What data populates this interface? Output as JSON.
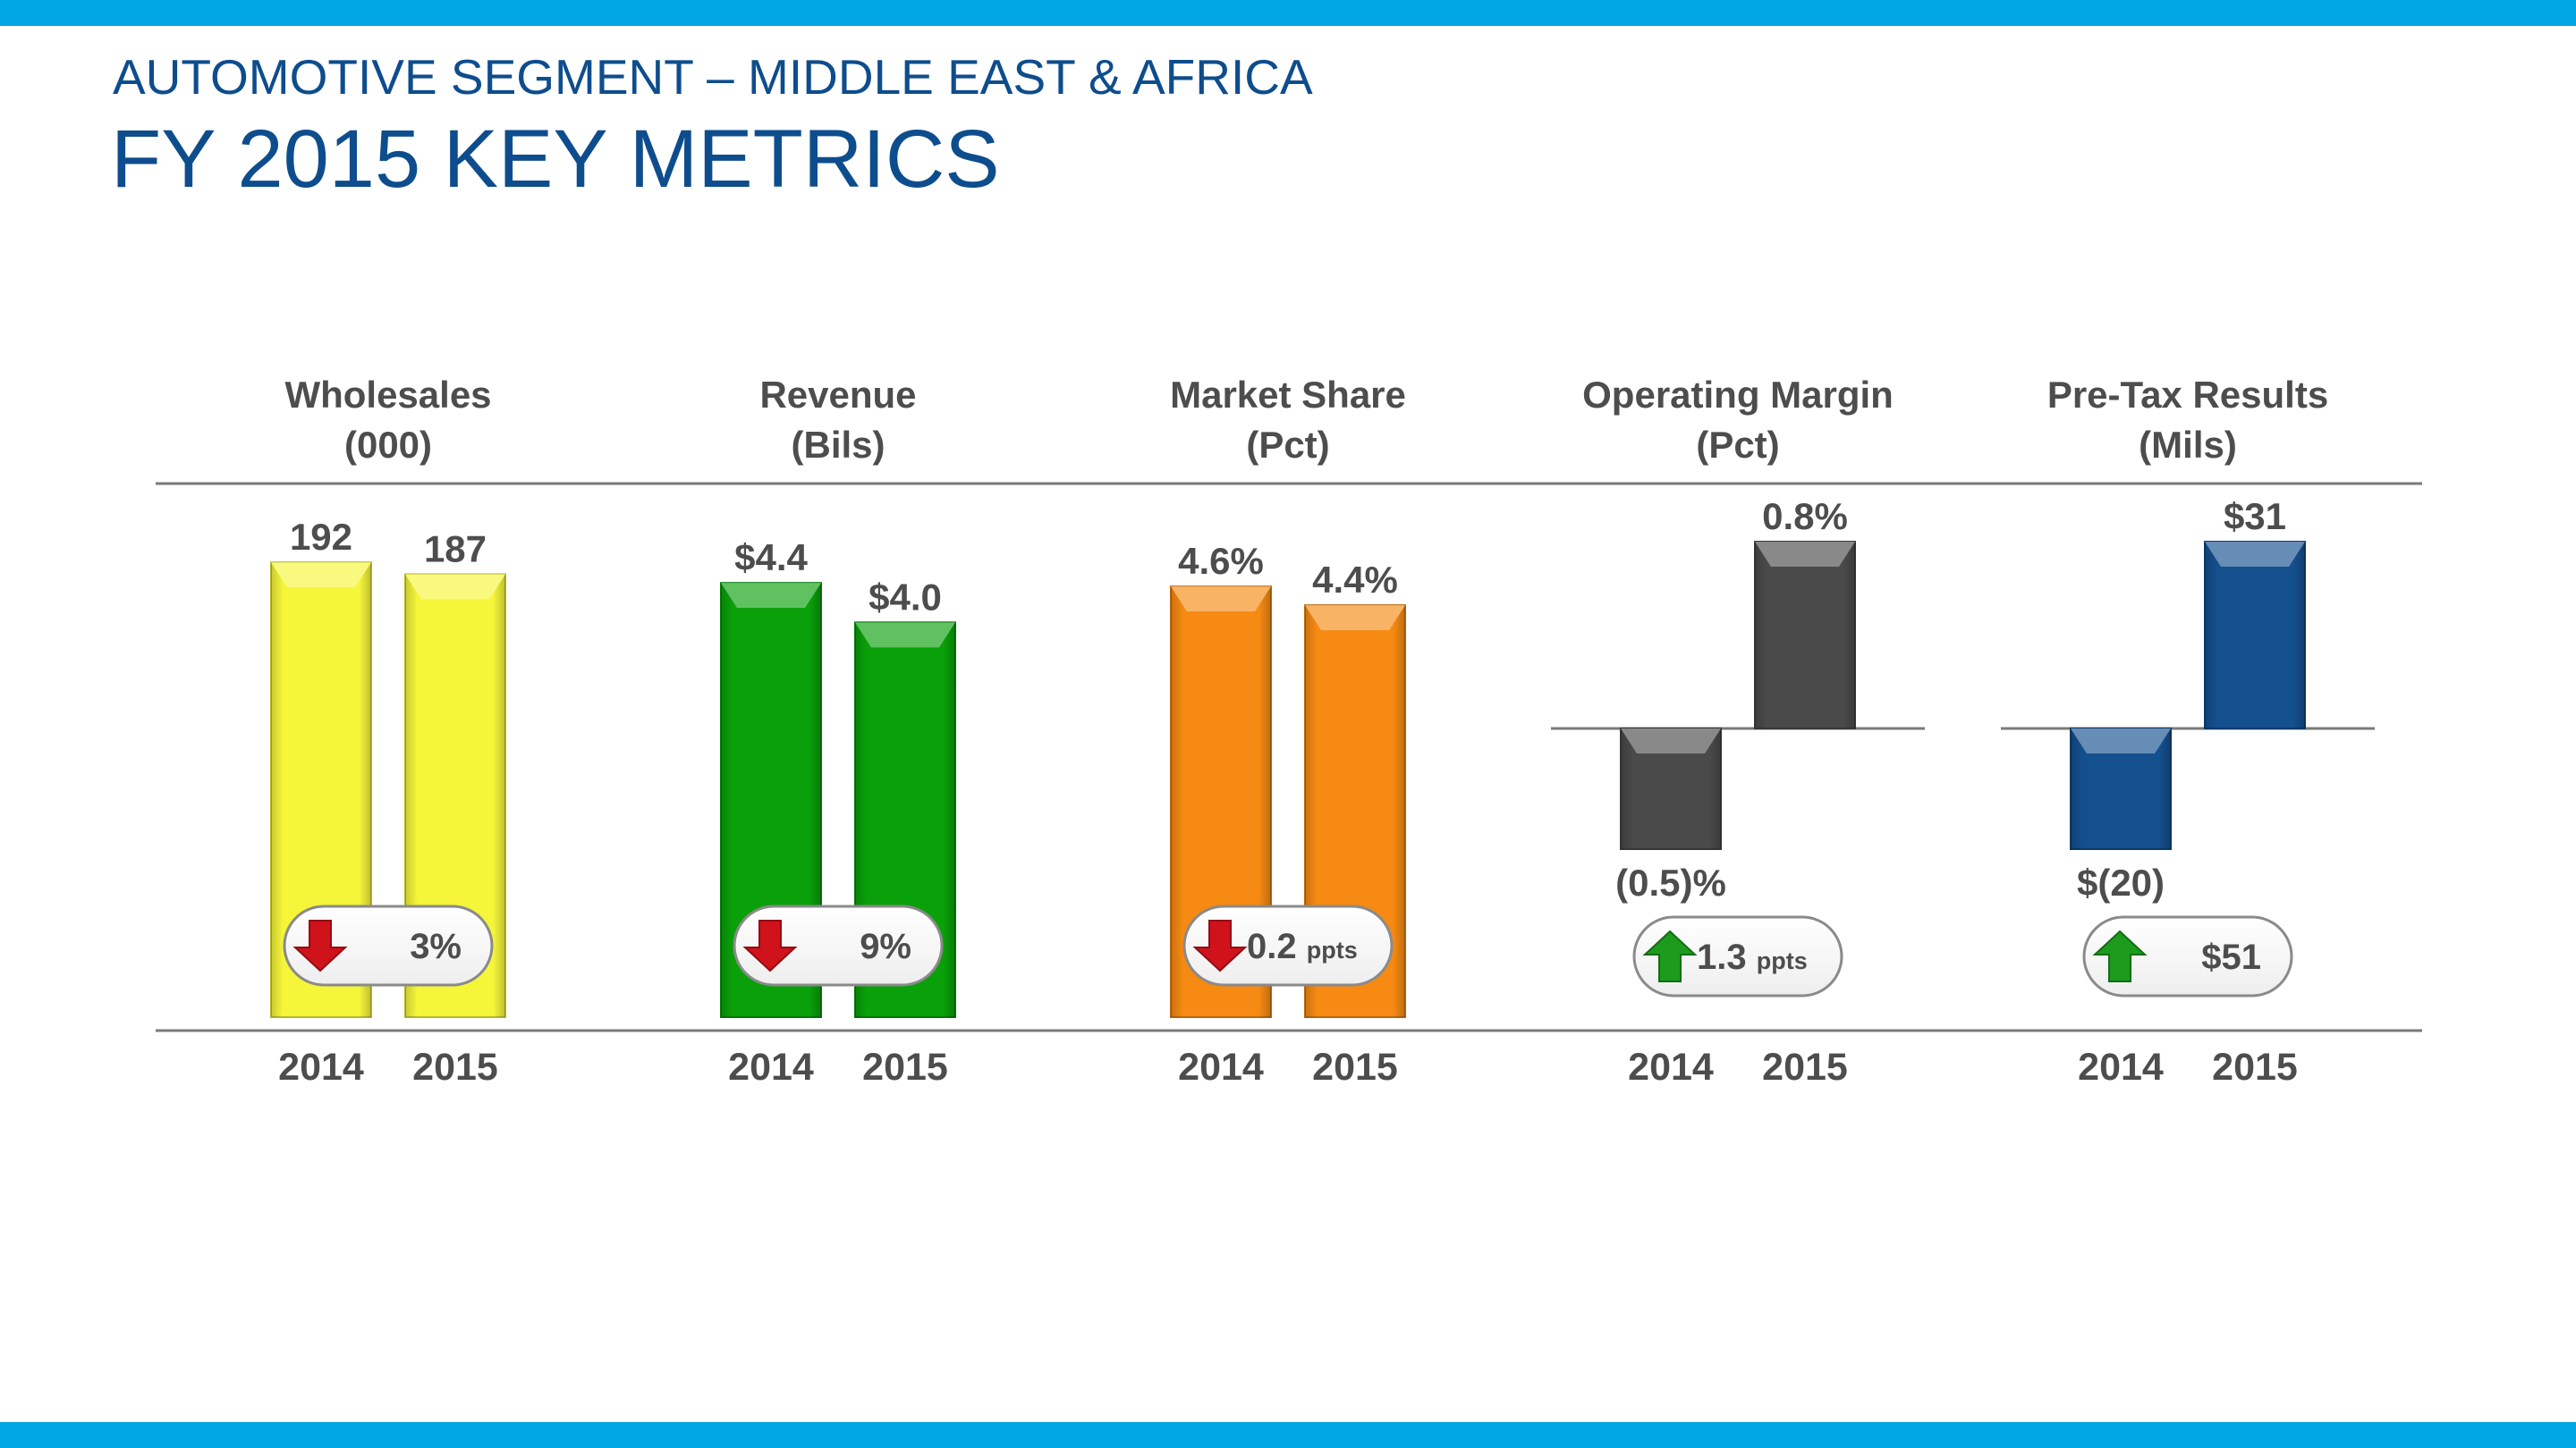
{
  "header": {
    "subtitle": "AUTOMOTIVE SEGMENT – MIDDLE EAST & AFRICA",
    "title": "FY 2015 KEY METRICS"
  },
  "colors": {
    "brand_blue": "#00a6e2",
    "title_blue": "#0e4d8d",
    "text_gray": "#4d4d4d",
    "up_green": "#1d9b1d",
    "down_red": "#d0121b"
  },
  "chart_data": [
    {
      "type": "bar",
      "title": "Wholesales",
      "unit_label": "(000)",
      "categories": [
        "2014",
        "2015"
      ],
      "values": [
        192,
        187
      ],
      "value_labels": [
        "192",
        "187"
      ],
      "color": "#f5f53a",
      "ylim": [
        0,
        200
      ],
      "change": {
        "direction": "down",
        "value": "3",
        "suffix": "%"
      }
    },
    {
      "type": "bar",
      "title": "Revenue",
      "unit_label": "(Bils)",
      "categories": [
        "2014",
        "2015"
      ],
      "values": [
        4.4,
        4.0
      ],
      "value_labels": [
        "$4.4",
        "$4.0"
      ],
      "color": "#0aa00a",
      "ylim": [
        0,
        4.8
      ],
      "change": {
        "direction": "down",
        "value": "9",
        "suffix": "%"
      }
    },
    {
      "type": "bar",
      "title": "Market Share",
      "unit_label": "(Pct)",
      "categories": [
        "2014",
        "2015"
      ],
      "values": [
        4.6,
        4.4
      ],
      "value_labels": [
        "4.6%",
        "4.4%"
      ],
      "color": "#f68a12",
      "ylim": [
        0,
        5.06
      ],
      "change": {
        "direction": "down",
        "value": "0.2",
        "suffix": "ppts"
      }
    },
    {
      "type": "bar",
      "title": "Operating Margin",
      "unit_label": "(Pct)",
      "categories": [
        "2014",
        "2015"
      ],
      "values": [
        -0.5,
        0.8
      ],
      "value_labels": [
        "(0.5)%",
        "0.8%"
      ],
      "color": "#4a4a4a",
      "ylim": [
        -0.5,
        0.8
      ],
      "change": {
        "direction": "up",
        "value": "1.3",
        "suffix": "ppts"
      }
    },
    {
      "type": "bar",
      "title": "Pre-Tax Results",
      "unit_label": "(Mils)",
      "categories": [
        "2014",
        "2015"
      ],
      "values": [
        -20,
        31
      ],
      "value_labels": [
        "$(20)",
        "$31"
      ],
      "color": "#144f8e",
      "ylim": [
        -20,
        31
      ],
      "change": {
        "direction": "up",
        "value": "$51",
        "suffix": ""
      }
    }
  ]
}
